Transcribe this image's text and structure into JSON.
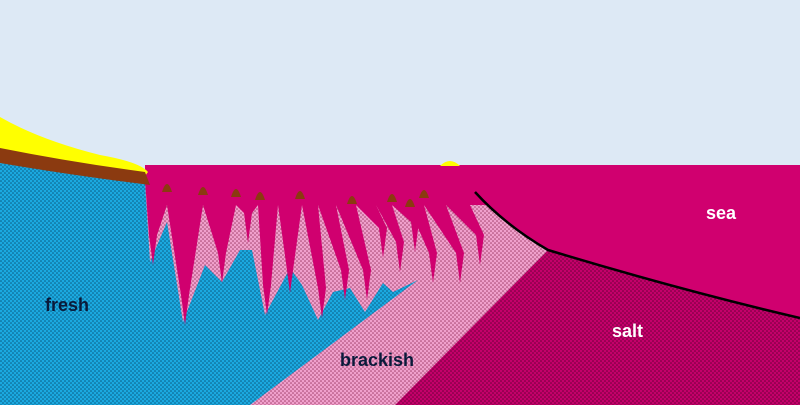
{
  "labels": {
    "fresh": "fresh",
    "brackish": "brackish",
    "salt": "salt",
    "sea": "sea"
  },
  "colors": {
    "sky": "#dde9f5",
    "fresh": "#1ba9e0",
    "brackish": "#f0a0cc",
    "salt": "#c4006a",
    "sea": "#d0006f",
    "sand": "#ffff00",
    "soil": "#8b3a10",
    "interface_line": "#000000"
  }
}
